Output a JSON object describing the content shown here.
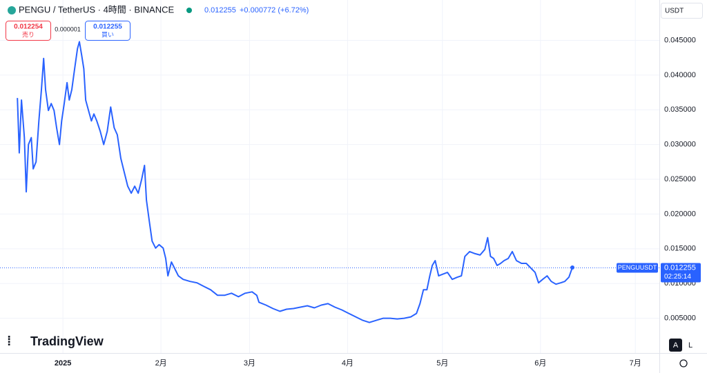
{
  "chart_data": {
    "type": "line",
    "title": "PENGU / TetherUS · 4時間 · BINANCE",
    "last_price": 0.012255,
    "change": "+0.000772 (+6.72%)",
    "sell_price": "0.012254",
    "sell_label": "売り",
    "spread": "0.000001",
    "buy_price": "0.012255",
    "buy_label": "買い",
    "currency": "USDT",
    "symbol": "PENGUUSDT",
    "countdown": "02:25:14",
    "brand": "TradingView",
    "scale_auto": "A",
    "scale_log": "L",
    "color": "#2962ff",
    "xlim": [
      -19.9,
      188.6
    ],
    "xticks": [
      {
        "value": 0,
        "label": "2025"
      },
      {
        "value": 31,
        "label": "2月"
      },
      {
        "value": 59,
        "label": "3月"
      },
      {
        "value": 90,
        "label": "4月"
      },
      {
        "value": 120,
        "label": "5月"
      },
      {
        "value": 151,
        "label": "6月"
      },
      {
        "value": 181,
        "label": "7月"
      }
    ],
    "ylim": [
      0,
      0.0508
    ],
    "yticks": [
      {
        "value": 0.005,
        "label": "0.005000"
      },
      {
        "value": 0.01,
        "label": "0.010000"
      },
      {
        "value": 0.015,
        "label": "0.015000"
      },
      {
        "value": 0.02,
        "label": "0.020000"
      },
      {
        "value": 0.025,
        "label": "0.025000"
      },
      {
        "value": 0.03,
        "label": "0.030000"
      },
      {
        "value": 0.035,
        "label": "0.035000"
      },
      {
        "value": 0.04,
        "label": "0.040000"
      },
      {
        "value": 0.045,
        "label": "0.045000"
      }
    ],
    "grid": true,
    "x": [
      -14.4,
      -13.8,
      -13.1,
      -12.2,
      -11.6,
      -10.9,
      -10.0,
      -9.4,
      -8.5,
      -7.6,
      -6.8,
      -6.1,
      -5.5,
      -4.6,
      -3.7,
      -2.8,
      -2.0,
      -1.1,
      -0.4,
      0.4,
      1.3,
      2.0,
      2.8,
      3.7,
      4.6,
      5.2,
      5.9,
      6.6,
      7.2,
      8.1,
      9.0,
      9.8,
      10.7,
      11.8,
      12.9,
      14.0,
      15.1,
      16.2,
      17.2,
      18.3,
      19.4,
      20.5,
      21.6,
      22.7,
      23.8,
      24.9,
      25.8,
      26.4,
      27.3,
      28.2,
      29.3,
      30.4,
      31.7,
      32.5,
      33.2,
      34.3,
      35.4,
      36.5,
      38.0,
      40.2,
      42.4,
      44.5,
      46.7,
      48.9,
      51.1,
      53.3,
      55.5,
      57.6,
      59.8,
      61.3,
      62.0,
      64.2,
      66.4,
      68.6,
      70.7,
      72.9,
      75.1,
      77.3,
      79.5,
      81.7,
      83.8,
      86.0,
      88.2,
      90.4,
      92.6,
      94.8,
      96.9,
      99.1,
      101.3,
      103.5,
      105.7,
      107.9,
      110.0,
      111.8,
      112.9,
      114.0,
      115.1,
      116.0,
      116.8,
      117.7,
      118.8,
      119.9,
      121.6,
      123.1,
      124.7,
      126.0,
      127.1,
      128.6,
      130.3,
      131.9,
      133.4,
      134.3,
      135.2,
      136.2,
      137.3,
      138.4,
      139.5,
      140.8,
      142.1,
      143.4,
      145.0,
      146.5,
      147.8,
      149.3,
      150.4,
      151.7,
      153.1,
      154.4,
      155.9,
      157.4,
      158.7,
      160.0,
      161.1
    ],
    "values": [
      0.0367,
      0.0288,
      0.0364,
      0.031,
      0.0232,
      0.03,
      0.031,
      0.0265,
      0.0275,
      0.0334,
      0.0379,
      0.0424,
      0.0379,
      0.0349,
      0.0359,
      0.0349,
      0.0324,
      0.03,
      0.0334,
      0.0359,
      0.0389,
      0.0364,
      0.0379,
      0.0409,
      0.0438,
      0.0448,
      0.0429,
      0.0409,
      0.0364,
      0.0349,
      0.0334,
      0.0344,
      0.0334,
      0.0319,
      0.03,
      0.0319,
      0.0354,
      0.0324,
      0.0314,
      0.028,
      0.026,
      0.024,
      0.023,
      0.024,
      0.023,
      0.025,
      0.027,
      0.022,
      0.019,
      0.0161,
      0.0151,
      0.0156,
      0.0151,
      0.0136,
      0.0111,
      0.0131,
      0.0121,
      0.0111,
      0.0106,
      0.0103,
      0.0101,
      0.0096,
      0.0091,
      0.0083,
      0.0083,
      0.0086,
      0.0081,
      0.0086,
      0.0088,
      0.0083,
      0.0073,
      0.0069,
      0.0064,
      0.006,
      0.0063,
      0.0064,
      0.0066,
      0.0068,
      0.0065,
      0.0069,
      0.0071,
      0.0066,
      0.0062,
      0.0057,
      0.0052,
      0.0047,
      0.0044,
      0.0047,
      0.005,
      0.005,
      0.0049,
      0.005,
      0.0052,
      0.0057,
      0.0071,
      0.0091,
      0.0091,
      0.0111,
      0.0126,
      0.0133,
      0.0111,
      0.0113,
      0.0116,
      0.0106,
      0.0109,
      0.0111,
      0.0139,
      0.0146,
      0.0143,
      0.0141,
      0.0149,
      0.0166,
      0.0139,
      0.0136,
      0.0126,
      0.0129,
      0.0133,
      0.0136,
      0.0146,
      0.0133,
      0.0129,
      0.0129,
      0.0123,
      0.0116,
      0.0101,
      0.0106,
      0.0111,
      0.0103,
      0.0099,
      0.0101,
      0.0103,
      0.0109,
      0.0123
    ]
  }
}
